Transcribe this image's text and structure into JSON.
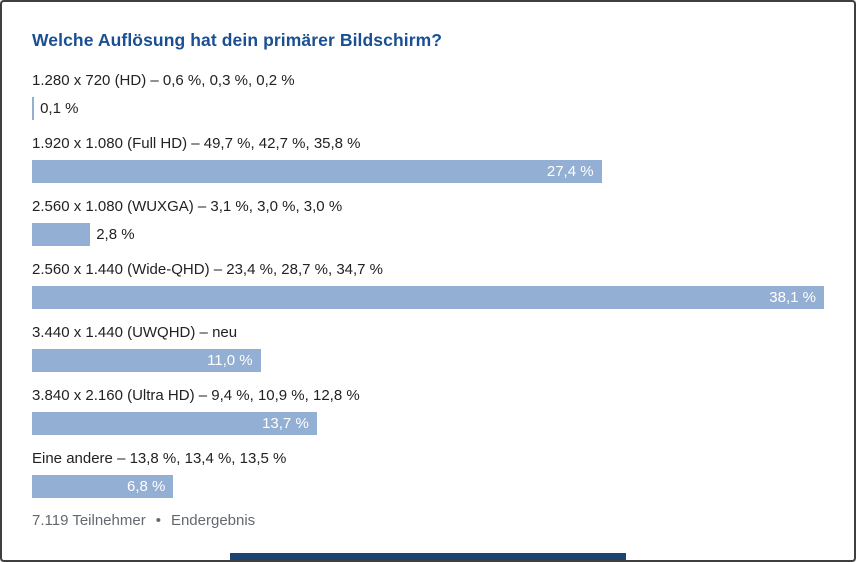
{
  "poll": {
    "title": "Welche Auflösung hat dein primärer Bildschirm?",
    "options": [
      {
        "label": "1.280 x 720 (HD) – 0,6 %, 0,3 %, 0,2 %",
        "value": 0.1,
        "value_label": "0,1 %",
        "label_position": "outside"
      },
      {
        "label": "1.920 x 1.080 (Full HD) – 49,7 %, 42,7 %, 35,8 %",
        "value": 27.4,
        "value_label": "27,4 %",
        "label_position": "inside"
      },
      {
        "label": "2.560 x 1.080 (WUXGA) – 3,1 %, 3,0 %, 3,0 %",
        "value": 2.8,
        "value_label": "2,8 %",
        "label_position": "outside"
      },
      {
        "label": "2.560 x 1.440 (Wide-QHD) – 23,4 %, 28,7 %, 34,7 %",
        "value": 38.1,
        "value_label": "38,1 %",
        "label_position": "inside"
      },
      {
        "label": "3.440 x 1.440 (UWQHD) – neu",
        "value": 11.0,
        "value_label": "11,0 %",
        "label_position": "inside"
      },
      {
        "label": "3.840 x 2.160 (Ultra HD) – 9,4 %, 10,9 %, 12,8 %",
        "value": 13.7,
        "value_label": "13,7 %",
        "label_position": "inside"
      },
      {
        "label": "Eine andere – 13,8 %, 13,4 %, 13,5 %",
        "value": 6.8,
        "value_label": "6,8 %",
        "label_position": "inside"
      }
    ],
    "footer": {
      "participants": "7.119 Teilnehmer",
      "separator": "•",
      "status": "Endergebnis"
    }
  },
  "chart_data": {
    "type": "bar",
    "orientation": "horizontal",
    "title": "Welche Auflösung hat dein primärer Bildschirm?",
    "categories": [
      "1.280 x 720 (HD)",
      "1.920 x 1.080 (Full HD)",
      "2.560 x 1.080 (WUXGA)",
      "2.560 x 1.440 (Wide-QHD)",
      "3.440 x 1.440 (UWQHD)",
      "3.840 x 2.160 (Ultra HD)",
      "Eine andere"
    ],
    "values": [
      0.1,
      27.4,
      2.8,
      38.1,
      11.0,
      13.7,
      6.8
    ],
    "value_labels": [
      "0,1 %",
      "27,4 %",
      "2,8 %",
      "38,1 %",
      "11,0 %",
      "13,7 %",
      "6,8 %"
    ],
    "previous_results_annotations": [
      "0,6 %, 0,3 %, 0,2 %",
      "49,7 %, 42,7 %, 35,8 %",
      "3,1 %, 3,0 %, 3,0 %",
      "23,4 %, 28,7 %, 34,7 %",
      "neu",
      "9,4 %, 10,9 %, 12,8 %",
      "13,8 %, 13,4 %, 13,5 %"
    ],
    "xlim": [
      0,
      38.1
    ],
    "grid": false,
    "legend": false,
    "footnote": "7.119 Teilnehmer • Endergebnis"
  },
  "colors": {
    "bar_fill": "#93afd3",
    "title_text": "#1a5093",
    "label_text": "#222222",
    "footer_text": "#62696f",
    "accent_bottom": "#1c4470",
    "frame_border": "#3f3f3f"
  }
}
